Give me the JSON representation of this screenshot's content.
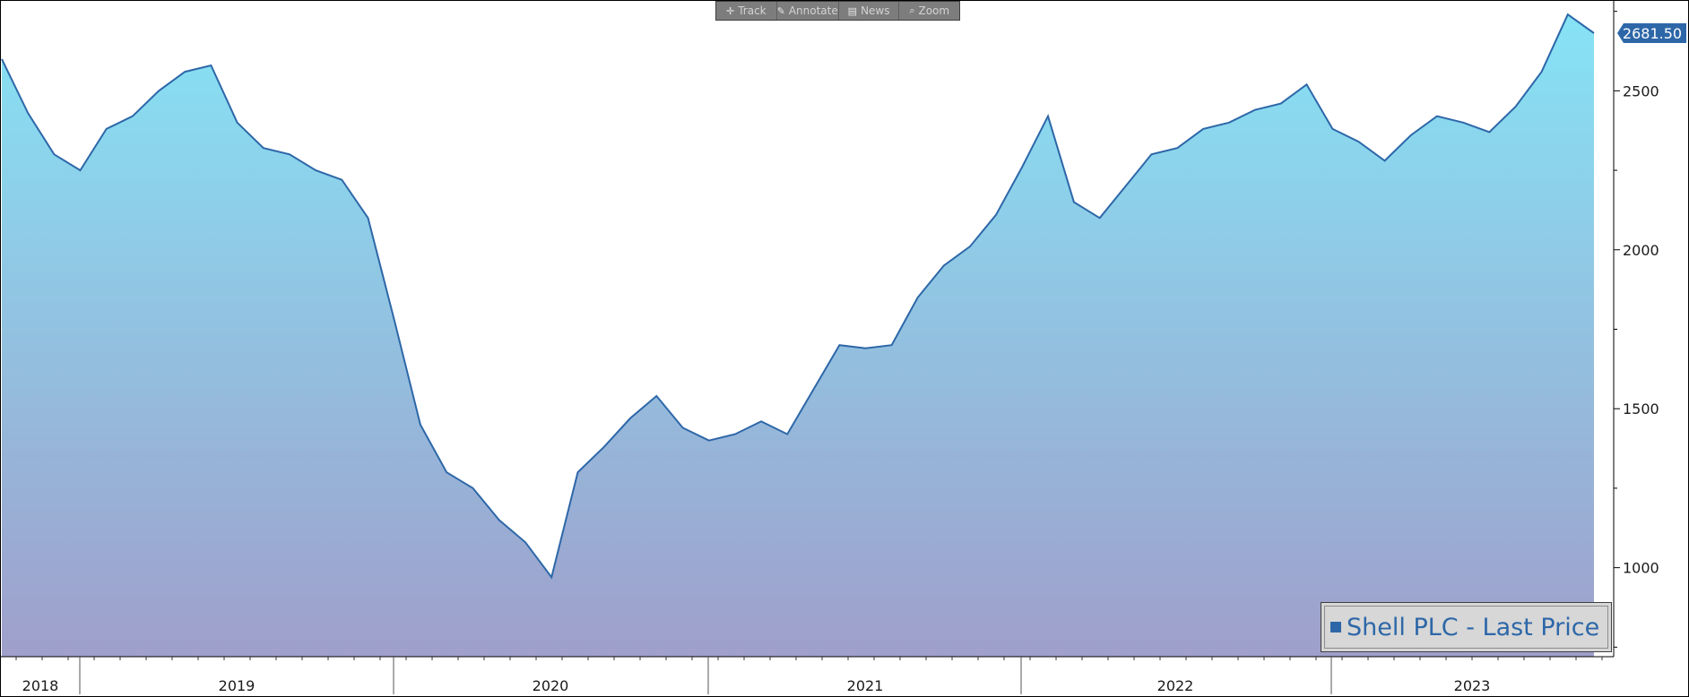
{
  "toolbar": {
    "buttons": [
      {
        "label": "Track",
        "icon": "crosshair-icon"
      },
      {
        "label": "Annotate",
        "icon": "pencil-icon"
      },
      {
        "label": "News",
        "icon": "news-icon"
      },
      {
        "label": "Zoom",
        "icon": "magnifier-icon"
      }
    ]
  },
  "legend": {
    "label": "Shell PLC - Last Price",
    "color": "#2d67a8"
  },
  "last_price_badge": {
    "value": "2681.50",
    "color": "#2d67a8"
  },
  "colors": {
    "line": "#2d67a8",
    "fill_top": "#86e3f5",
    "fill_bottom": "#9f9fcb",
    "axis": "#000000"
  },
  "chart_data": {
    "type": "area",
    "series": [
      {
        "name": "Shell PLC - Last Price",
        "x": [
          "2018-09",
          "2018-10",
          "2018-11",
          "2018-12",
          "2019-01",
          "2019-02",
          "2019-03",
          "2019-04",
          "2019-05",
          "2019-06",
          "2019-07",
          "2019-08",
          "2019-09",
          "2019-10",
          "2019-11",
          "2019-12",
          "2020-01",
          "2020-02",
          "2020-03",
          "2020-04",
          "2020-05",
          "2020-06",
          "2020-07",
          "2020-08",
          "2020-09",
          "2020-10",
          "2020-11",
          "2020-12",
          "2021-01",
          "2021-02",
          "2021-03",
          "2021-04",
          "2021-05",
          "2021-06",
          "2021-07",
          "2021-08",
          "2021-09",
          "2021-10",
          "2021-11",
          "2021-12",
          "2022-01",
          "2022-02",
          "2022-03",
          "2022-04",
          "2022-05",
          "2022-06",
          "2022-07",
          "2022-08",
          "2022-09",
          "2022-10",
          "2022-11",
          "2022-12",
          "2023-01",
          "2023-02",
          "2023-03",
          "2023-04",
          "2023-05",
          "2023-06",
          "2023-07",
          "2023-08",
          "2023-09",
          "2023-10"
        ],
        "values": [
          2600,
          2430,
          2300,
          2250,
          2380,
          2420,
          2500,
          2560,
          2580,
          2400,
          2320,
          2300,
          2250,
          2220,
          2100,
          1780,
          1450,
          1300,
          1250,
          1150,
          1080,
          970,
          1300,
          1380,
          1470,
          1540,
          1440,
          1400,
          1420,
          1460,
          1420,
          1560,
          1700,
          1690,
          1700,
          1850,
          1950,
          2010,
          2110,
          2260,
          2420,
          2150,
          2100,
          2200,
          2300,
          2320,
          2380,
          2400,
          2440,
          2460,
          2520,
          2380,
          2340,
          2280,
          2360,
          2420,
          2400,
          2370,
          2450,
          2560,
          2740,
          2681.5
        ]
      }
    ],
    "xlabel": "",
    "ylabel": "",
    "ylim": [
      720,
      2780
    ],
    "yticks": [
      1000,
      1500,
      2000,
      2500
    ],
    "x_axis_labels": [
      "2018",
      "2019",
      "2020",
      "2021",
      "2022",
      "2023"
    ],
    "last_value": 2681.5,
    "grid": false,
    "legend_position": "bottom-right"
  }
}
